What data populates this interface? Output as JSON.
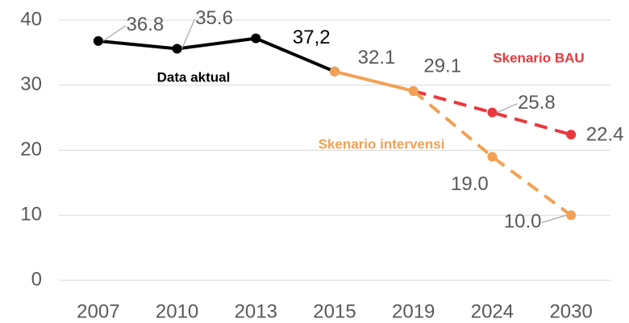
{
  "chart_data": {
    "type": "line",
    "categories": [
      "2007",
      "2010",
      "2013",
      "2015",
      "2019",
      "2024",
      "2030"
    ],
    "series": [
      {
        "name": "Data aktual",
        "color": "#000000",
        "line_style": "solid",
        "values": [
          36.8,
          35.6,
          37.2,
          32.1,
          null,
          null,
          null
        ],
        "value_labels": [
          "36.8",
          "35.6",
          "37,2",
          "32.1",
          null,
          null,
          null
        ]
      },
      {
        "name": "Skenario BAU",
        "color": "#e8383d",
        "line_style": "dashed",
        "values": [
          null,
          null,
          null,
          null,
          29.1,
          25.8,
          22.4
        ],
        "value_labels": [
          null,
          null,
          null,
          null,
          null,
          "25.8",
          "22.4"
        ]
      },
      {
        "name": "Skenario intervensi",
        "color": "#f2a154",
        "line_style": "dashed",
        "solid_until": "2019",
        "values": [
          null,
          null,
          null,
          32.1,
          29.1,
          19.0,
          10.0
        ],
        "value_labels": [
          null,
          null,
          null,
          null,
          "29.1",
          "19.0",
          "10.0"
        ]
      }
    ],
    "ylim": [
      0,
      40
    ],
    "yticks": [
      0,
      10,
      20,
      30,
      40
    ],
    "grid": true
  }
}
